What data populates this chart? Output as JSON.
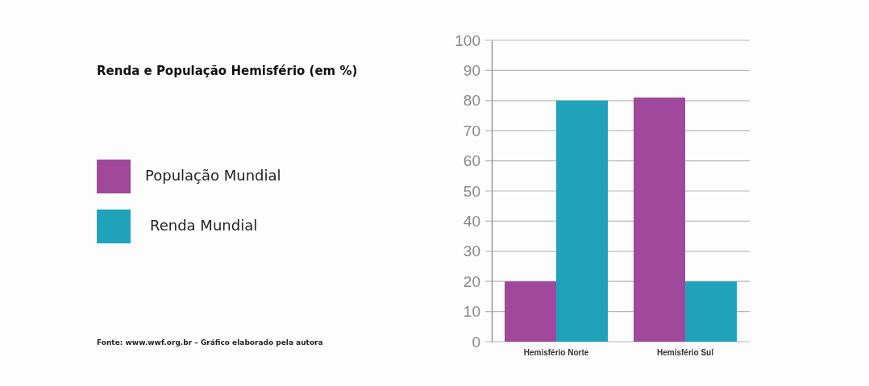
{
  "chart_data": {
    "type": "bar",
    "title": "Renda e População Hemisfério (em %)",
    "categories": [
      "Hemisfério Norte",
      "Hemisfério Sul"
    ],
    "series": [
      {
        "name": "População Mundial",
        "color": "#a0489b",
        "values": [
          20,
          81
        ]
      },
      {
        "name": "Renda Mundial",
        "color": "#1fa3bb",
        "values": [
          80,
          20
        ]
      }
    ],
    "ylim": [
      0,
      100
    ],
    "yticks": [
      0,
      10,
      20,
      30,
      40,
      50,
      60,
      70,
      80,
      90,
      100
    ],
    "grid": "y",
    "legend": "left",
    "annotations": [
      "Fonte: www.wwf.org.br – Gráfico elaborado pela autora"
    ]
  }
}
